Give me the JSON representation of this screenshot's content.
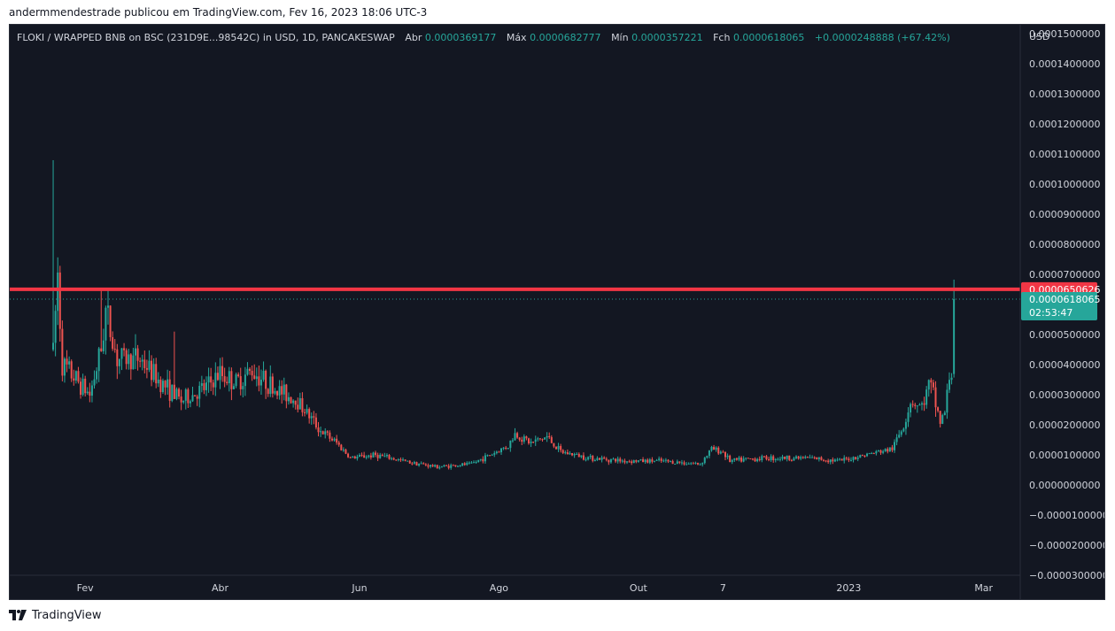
{
  "caption": "andermmendestrade publicou em TradingView.com, Fev 16, 2023 18:06 UTC-3",
  "footer": {
    "brand": "TradingView",
    "logo_icon": "tradingview-logo-icon"
  },
  "legend": {
    "symbol": "FLOKI / WRAPPED BNB on BSC (231D9E...98542C) in USD, 1D, PANCAKESWAP",
    "open_label": "Abr",
    "open_value": "0.0000369177",
    "high_label": "Máx",
    "high_value": "0.0000682777",
    "low_label": "Mín",
    "low_value": "0.0000357221",
    "close_label": "Fch",
    "close_value": "0.0000618065",
    "change": "+0.0000248888 (+67.42%)"
  },
  "colors": {
    "background": "#131722",
    "up": "#26a69a",
    "down": "#ef5350",
    "red_line": "#f23645",
    "grid_text": "#d1d4dc"
  },
  "chart_data": {
    "type": "candlestick",
    "currency_label": "USD",
    "y_ticks": [
      "0.0001500000",
      "0.0001400000",
      "0.0001300000",
      "0.0001200000",
      "0.0001100000",
      "0.0001000000",
      "0.0000900000",
      "0.0000800000",
      "0.0000700000",
      "0.0000500000",
      "0.0000400000",
      "0.0000300000",
      "0.0000200000",
      "0.0000100000",
      "0.0000000000",
      "−0.0000100000",
      "−0.0000200000",
      "−0.0000300000"
    ],
    "y_tick_values": [
      0.00015,
      0.00014,
      0.00013,
      0.00012,
      0.00011,
      0.0001,
      9e-05,
      8e-05,
      7e-05,
      5e-05,
      4e-05,
      3e-05,
      2e-05,
      1e-05,
      0,
      -1e-05,
      -2e-05,
      -3e-05
    ],
    "ylim": [
      -3e-05,
      0.000153
    ],
    "x_ticks": [
      {
        "label": "Fev",
        "date": "2022-02-01"
      },
      {
        "label": "Abr",
        "date": "2022-04-01"
      },
      {
        "label": "Jun",
        "date": "2022-06-01"
      },
      {
        "label": "Ago",
        "date": "2022-08-01"
      },
      {
        "label": "Out",
        "date": "2022-10-01"
      },
      {
        "label": "7",
        "date": "2022-11-07"
      },
      {
        "label": "2023",
        "date": "2023-01-01"
      },
      {
        "label": "Mar",
        "date": "2023-03-01"
      }
    ],
    "xlim": [
      "2021-12-30",
      "2023-03-17"
    ],
    "horizontal_line": {
      "value": 6.50626e-05,
      "label": "0.0000650626"
    },
    "last_price": {
      "value": 6.18065e-05,
      "label": "0.0000618065",
      "countdown": "02:53:47"
    },
    "keypoints": [
      [
        "2022-01-18",
        4.5e-05
      ],
      [
        "2022-01-20",
        7e-05
      ],
      [
        "2022-01-22",
        4e-05
      ],
      [
        "2022-01-27",
        3.6e-05
      ],
      [
        "2022-02-03",
        3e-05
      ],
      [
        "2022-02-08",
        4.5e-05
      ],
      [
        "2022-02-10",
        5.8e-05
      ],
      [
        "2022-02-15",
        4.2e-05
      ],
      [
        "2022-02-25",
        4.2e-05
      ],
      [
        "2022-03-05",
        3.5e-05
      ],
      [
        "2022-03-15",
        2.8e-05
      ],
      [
        "2022-03-25",
        3.2e-05
      ],
      [
        "2022-04-01",
        3.7e-05
      ],
      [
        "2022-04-08",
        3.4e-05
      ],
      [
        "2022-04-15",
        3.8e-05
      ],
      [
        "2022-04-25",
        3.2e-05
      ],
      [
        "2022-05-05",
        2.8e-05
      ],
      [
        "2022-05-15",
        1.8e-05
      ],
      [
        "2022-05-22",
        1.4e-05
      ],
      [
        "2022-05-28",
        9e-06
      ],
      [
        "2022-06-08",
        1e-05
      ],
      [
        "2022-06-20",
        8e-06
      ],
      [
        "2022-07-05",
        6e-06
      ],
      [
        "2022-07-20",
        7e-06
      ],
      [
        "2022-07-28",
        1e-05
      ],
      [
        "2022-08-05",
        1.3e-05
      ],
      [
        "2022-08-08",
        1.7e-05
      ],
      [
        "2022-08-15",
        1.4e-05
      ],
      [
        "2022-08-22",
        1.6e-05
      ],
      [
        "2022-08-28",
        1.1e-05
      ],
      [
        "2022-09-10",
        9e-06
      ],
      [
        "2022-09-25",
        8e-06
      ],
      [
        "2022-10-10",
        8e-06
      ],
      [
        "2022-10-28",
        7e-06
      ],
      [
        "2022-11-02",
        1.2e-05
      ],
      [
        "2022-11-07",
        1.1e-05
      ],
      [
        "2022-11-10",
        8e-06
      ],
      [
        "2022-11-25",
        9e-06
      ],
      [
        "2022-12-15",
        9e-06
      ],
      [
        "2022-12-28",
        8e-06
      ],
      [
        "2023-01-08",
        1e-05
      ],
      [
        "2023-01-20",
        1.2e-05
      ],
      [
        "2023-01-25",
        2e-05
      ],
      [
        "2023-01-28",
        2.8e-05
      ],
      [
        "2023-02-02",
        2.6e-05
      ],
      [
        "2023-02-05",
        3.3e-05
      ],
      [
        "2023-02-07",
        3e-05
      ],
      [
        "2023-02-10",
        2.1e-05
      ],
      [
        "2023-02-12",
        2.4e-05
      ],
      [
        "2023-02-14",
        3.6e-05
      ],
      [
        "2023-02-15",
        3.7e-05
      ],
      [
        "2023-02-16",
        6.18e-05
      ]
    ],
    "spikes": [
      {
        "date": "2022-01-17",
        "high": 0.000101
      },
      {
        "date": "2022-01-18",
        "high": 0.000108
      },
      {
        "date": "2022-02-08",
        "high": 6.5e-05
      },
      {
        "date": "2022-03-12",
        "high": 5.1e-05
      },
      {
        "date": "2023-02-16",
        "high": 6.82777e-05
      }
    ]
  }
}
